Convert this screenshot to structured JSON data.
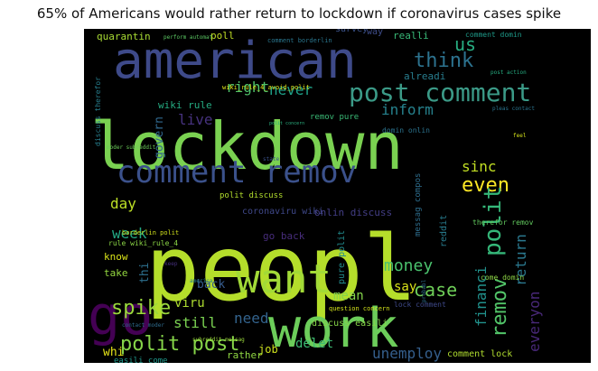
{
  "title": "65% of Americans would rather return to lockdown if coronavirus cases spike",
  "words": [
    {
      "text": "peopl",
      "color": "#b5de2b"
    },
    {
      "text": "lockdown",
      "color": "#7ad151"
    },
    {
      "text": "american",
      "color": "#3e4a89"
    },
    {
      "text": "work",
      "color": "#6ccd5a"
    },
    {
      "text": "comment remov",
      "color": "#3b518b"
    },
    {
      "text": "want",
      "color": "#a2da37"
    },
    {
      "text": "go",
      "color": "#440154"
    },
    {
      "text": "post comment",
      "color": "#3b9a87"
    },
    {
      "text": "polit post",
      "color": "#86d549"
    },
    {
      "text": "spike",
      "color": "#9bd93c"
    },
    {
      "text": "think",
      "color": "#2c728e"
    },
    {
      "text": "us",
      "color": "#27ad81"
    },
    {
      "text": "even",
      "color": "#fde725"
    },
    {
      "text": "polit",
      "color": "#35b779"
    },
    {
      "text": "remov",
      "color": "#52c569"
    },
    {
      "text": "money",
      "color": "#4ac16d"
    },
    {
      "text": "case",
      "color": "#6ece58"
    },
    {
      "text": "sinc",
      "color": "#c2df23"
    },
    {
      "text": "return",
      "color": "#2a788e"
    },
    {
      "text": "everyon",
      "color": "#482878"
    },
    {
      "text": "financi",
      "color": "#21918c"
    },
    {
      "text": "still",
      "color": "#7ad151"
    },
    {
      "text": "need",
      "color": "#33638d"
    },
    {
      "text": "week",
      "color": "#22a884"
    },
    {
      "text": "day",
      "color": "#bddf26"
    },
    {
      "text": "right",
      "color": "#50c46a"
    },
    {
      "text": "never",
      "color": "#1fa188"
    },
    {
      "text": "inform",
      "color": "#26828e"
    },
    {
      "text": "live",
      "color": "#46327e"
    },
    {
      "text": "mean",
      "color": "#84d44b"
    },
    {
      "text": "viru",
      "color": "#addc30"
    },
    {
      "text": "say",
      "color": "#dae319"
    },
    {
      "text": "delet",
      "color": "#3dbc74"
    },
    {
      "text": "unemploy",
      "color": "#355f8d"
    },
    {
      "text": "govern",
      "color": "#31688e"
    },
    {
      "text": "thi",
      "color": "#2d708e"
    },
    {
      "text": "back",
      "color": "#365c8d"
    },
    {
      "text": "whi",
      "color": "#e5e419"
    },
    {
      "text": "job",
      "color": "#cde11d"
    },
    {
      "text": "rather",
      "color": "#90d743"
    },
    {
      "text": "know",
      "color": "#d8e219"
    },
    {
      "text": "take",
      "color": "#94d840"
    },
    {
      "text": "go back",
      "color": "#472d7b"
    },
    {
      "text": "wiki rule",
      "color": "#25ac82"
    },
    {
      "text": "realli",
      "color": "#38b977"
    },
    {
      "text": "alreadi",
      "color": "#287d8e"
    },
    {
      "text": "quarantin",
      "color": "#a8db34"
    },
    {
      "text": "poll",
      "color": "#c0df25"
    },
    {
      "text": "survey",
      "color": "#3b528b"
    },
    {
      "text": "way",
      "color": "#3e4c8a"
    },
    {
      "text": "comment borderlin",
      "color": "#2a768e"
    },
    {
      "text": "comment domin",
      "color": "#1e9b8a"
    },
    {
      "text": "perform automat",
      "color": "#5cc863"
    },
    {
      "text": "remov pure",
      "color": "#3aba76"
    },
    {
      "text": "domin onlin",
      "color": "#2c738e"
    },
    {
      "text": "discuss therefor",
      "color": "#277f8e"
    },
    {
      "text": "polit discuss",
      "color": "#b2dd2d"
    },
    {
      "text": "coronaviru wiki",
      "color": "#3f4889"
    },
    {
      "text": "onlin discuss",
      "color": "#433e85"
    },
    {
      "text": "rule wiki_rule_4",
      "color": "#8bd646"
    },
    {
      "text": "borderlin polit",
      "color": "#d0e11c"
    },
    {
      "text": "pure polit",
      "color": "#228b8d"
    },
    {
      "text": "messag compos",
      "color": "#2e6e8e"
    },
    {
      "text": "reddit",
      "color": "#287c8e"
    },
    {
      "text": "therefor remov",
      "color": "#63cb5f"
    },
    {
      "text": "question concern",
      "color": "#d2e21b"
    },
    {
      "text": "lock comment",
      "color": "#3e4989"
    },
    {
      "text": "discuss easili",
      "color": "#86d549"
    },
    {
      "text": "easili come",
      "color": "#1f988b"
    },
    {
      "text": "comment lock",
      "color": "#b0dd2f"
    },
    {
      "text": "wiki_rule_4_avoid_polit",
      "color": "#e2e418"
    },
    {
      "text": "polit concern",
      "color": "#2ab07f"
    },
    {
      "text": "post action",
      "color": "#26ad81"
    },
    {
      "text": "pleas contact",
      "color": "#2b748e"
    },
    {
      "text": "come domin",
      "color": "#8ed645"
    },
    {
      "text": "moder subreddit",
      "color": "#6ccd5a"
    },
    {
      "text": "subreddit messag",
      "color": "#9bd93c"
    },
    {
      "text": "contact moder",
      "color": "#2f6c8e"
    },
    {
      "text": "america",
      "color": "#287c8e"
    },
    {
      "text": "probabl",
      "color": "#2e6f8e"
    },
    {
      "text": "keep",
      "color": "#46307e"
    },
    {
      "text": "state",
      "color": "#3b528b"
    },
    {
      "text": "feel",
      "color": "#d5e21a"
    }
  ]
}
